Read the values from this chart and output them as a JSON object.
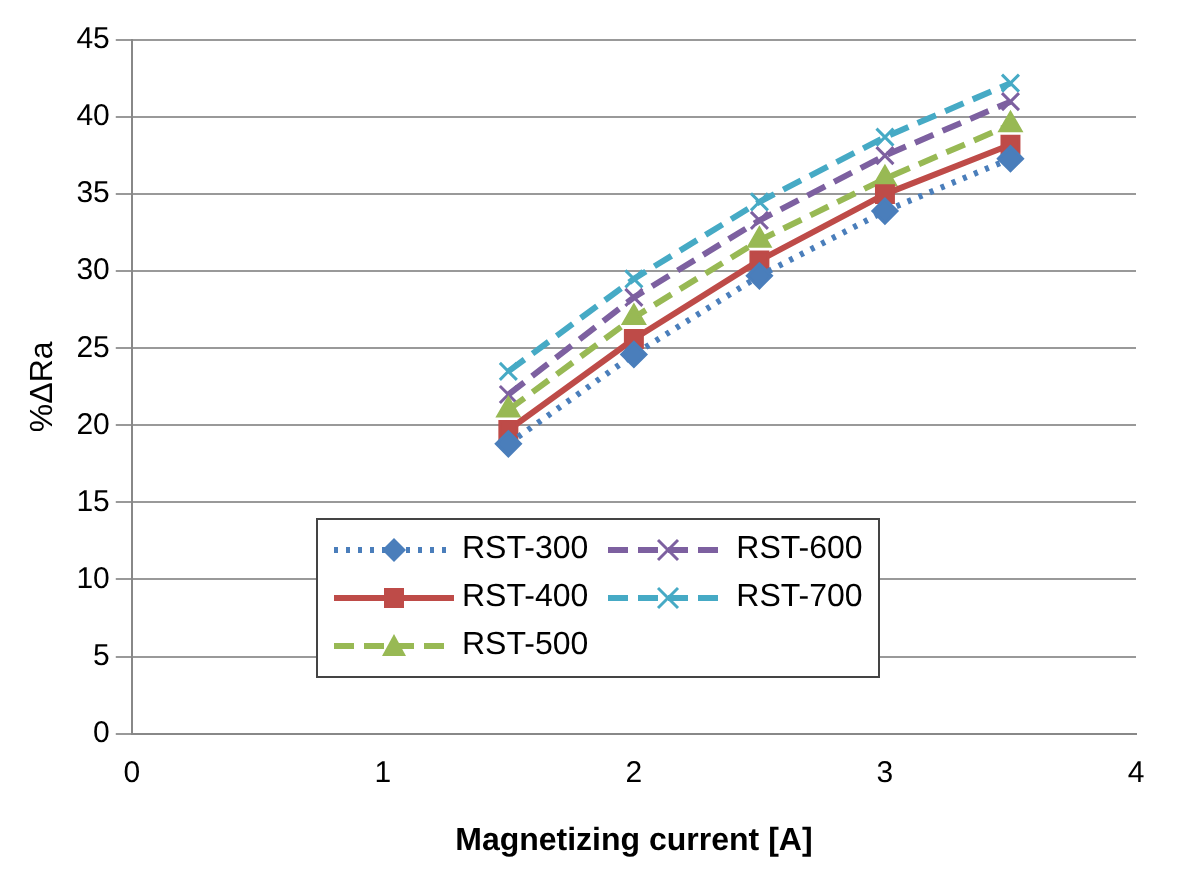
{
  "chart_data": {
    "type": "line",
    "xlabel": "Magnetizing current [A]",
    "ylabel": "%ΔRa",
    "x": [
      1.5,
      2,
      2.5,
      3,
      3.5
    ],
    "series": [
      {
        "name": "RST-300",
        "color": "#4a7ebb",
        "marker": "diamond",
        "line_style": "dotted",
        "values": [
          18.8,
          24.6,
          29.7,
          33.9,
          37.3
        ]
      },
      {
        "name": "RST-400",
        "color": "#be4b48",
        "marker": "square",
        "line_style": "solid",
        "values": [
          19.7,
          25.6,
          30.7,
          35,
          38.2
        ]
      },
      {
        "name": "RST-500",
        "color": "#98b954",
        "marker": "triangle",
        "line_style": "dashed",
        "values": [
          21,
          27,
          32,
          36,
          39.5
        ]
      },
      {
        "name": "RST-600",
        "color": "#7d60a0",
        "marker": "cross",
        "line_style": "dashed",
        "values": [
          22,
          28.3,
          33.3,
          37.5,
          41
        ]
      },
      {
        "name": "RST-700",
        "color": "#46aac5",
        "marker": "cross",
        "line_style": "dashed",
        "values": [
          23.5,
          29.5,
          34.5,
          38.7,
          42.2
        ]
      }
    ],
    "xlim": [
      0,
      4
    ],
    "xticks": [
      0,
      1,
      2,
      3,
      4
    ],
    "ylim": [
      0,
      45
    ],
    "yticks": [
      0,
      5,
      10,
      15,
      20,
      25,
      30,
      35,
      40,
      45
    ],
    "grid": "y",
    "legend": "bottom left"
  }
}
